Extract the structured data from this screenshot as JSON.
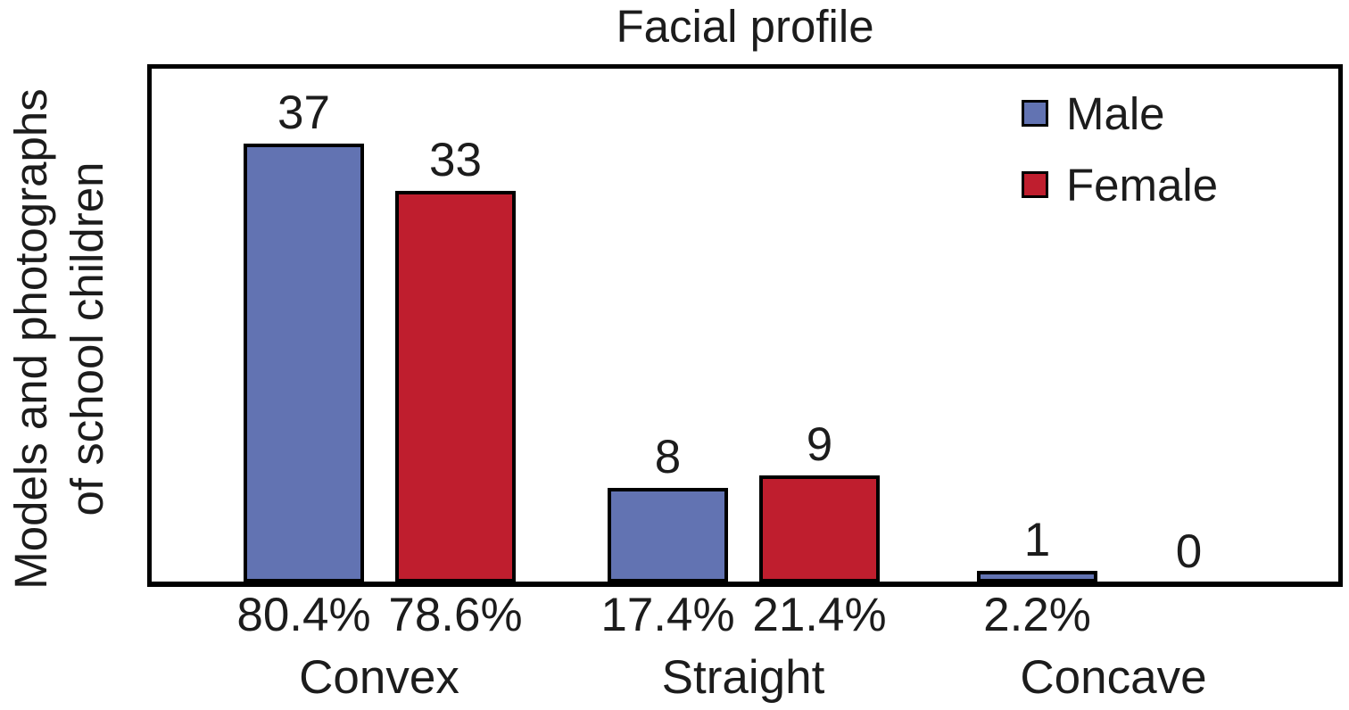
{
  "chart_data": {
    "type": "bar",
    "title": "Facial profile",
    "ylabel": "Models and photographs of school children",
    "ylabel_lines": [
      "Models and photographs",
      "of school children"
    ],
    "categories": [
      "Convex",
      "Straight",
      "Concave"
    ],
    "series": [
      {
        "name": "Male",
        "color": "#6273B2",
        "values": [
          37,
          8,
          1
        ],
        "percent_labels": [
          "80.4%",
          "17.4%",
          "2.2%"
        ]
      },
      {
        "name": "Female",
        "color": "#BF1E2E",
        "values": [
          33,
          9,
          0
        ],
        "percent_labels": [
          "78.6%",
          "21.4%",
          ""
        ]
      }
    ],
    "ylim": [
      0,
      44
    ],
    "grid": false,
    "legend_position": "top-right",
    "bar_value_labels_shown": true,
    "axis_ticks_shown": false
  }
}
